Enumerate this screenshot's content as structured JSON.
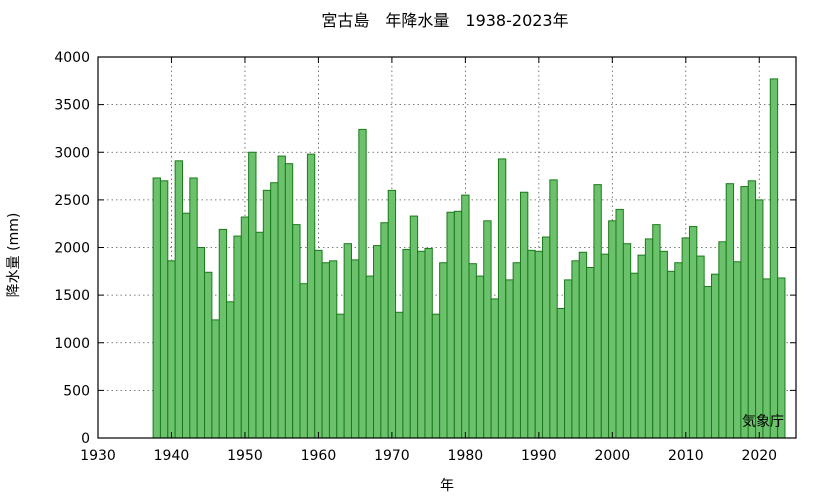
{
  "chart_data": {
    "type": "bar",
    "title": "宮古島　年降水量　1938-2023年",
    "xlabel": "年",
    "ylabel": "降水量 (mm)",
    "source_note": "気象庁",
    "xlim": [
      1930,
      2025
    ],
    "ylim": [
      0,
      4000
    ],
    "x_ticks": [
      1930,
      1940,
      1950,
      1960,
      1970,
      1980,
      1990,
      2000,
      2010,
      2020
    ],
    "y_ticks": [
      0,
      500,
      1000,
      1500,
      2000,
      2500,
      3000,
      3500,
      4000
    ],
    "grid": true,
    "bar_color": "#6cc26c",
    "bar_edge_color": "#1a7a1a",
    "series": [
      {
        "x": [
          1938,
          1939,
          1940,
          1941,
          1942,
          1943,
          1944,
          1945,
          1946,
          1947,
          1948,
          1949,
          1950,
          1951,
          1952,
          1953,
          1954,
          1955,
          1956,
          1957,
          1958,
          1959,
          1960,
          1961,
          1962,
          1963,
          1964,
          1965,
          1966,
          1967,
          1968,
          1969,
          1970,
          1971,
          1972,
          1973,
          1974,
          1975,
          1976,
          1977,
          1978,
          1979,
          1980,
          1981,
          1982,
          1983,
          1984,
          1985,
          1986,
          1987,
          1988,
          1989,
          1990,
          1991,
          1992,
          1993,
          1994,
          1995,
          1996,
          1997,
          1998,
          1999,
          2000,
          2001,
          2002,
          2003,
          2004,
          2005,
          2006,
          2007,
          2008,
          2009,
          2010,
          2011,
          2012,
          2013,
          2014,
          2015,
          2016,
          2017,
          2018,
          2019,
          2020,
          2021,
          2022,
          2023
        ],
        "values": [
          2730,
          2700,
          1860,
          2910,
          2360,
          2730,
          2000,
          1740,
          1240,
          2190,
          1430,
          2120,
          2320,
          3000,
          2160,
          2600,
          2680,
          2960,
          2880,
          2240,
          1620,
          2980,
          1970,
          1840,
          1860,
          1300,
          2040,
          1870,
          3240,
          1700,
          2020,
          2260,
          2600,
          1320,
          1980,
          2330,
          1960,
          1990,
          1300,
          1840,
          2370,
          2380,
          2550,
          1830,
          1700,
          2280,
          1460,
          2930,
          1660,
          1840,
          2580,
          1970,
          1960,
          2110,
          2710,
          1360,
          1660,
          1860,
          1950,
          1790,
          2660,
          1930,
          2280,
          2400,
          2040,
          1730,
          1920,
          2090,
          2240,
          1960,
          1750,
          1840,
          2100,
          2220,
          1910,
          1590,
          1720,
          2060,
          2670,
          1850,
          2640,
          2700,
          2500,
          1670,
          3770,
          1680
        ]
      }
    ]
  }
}
